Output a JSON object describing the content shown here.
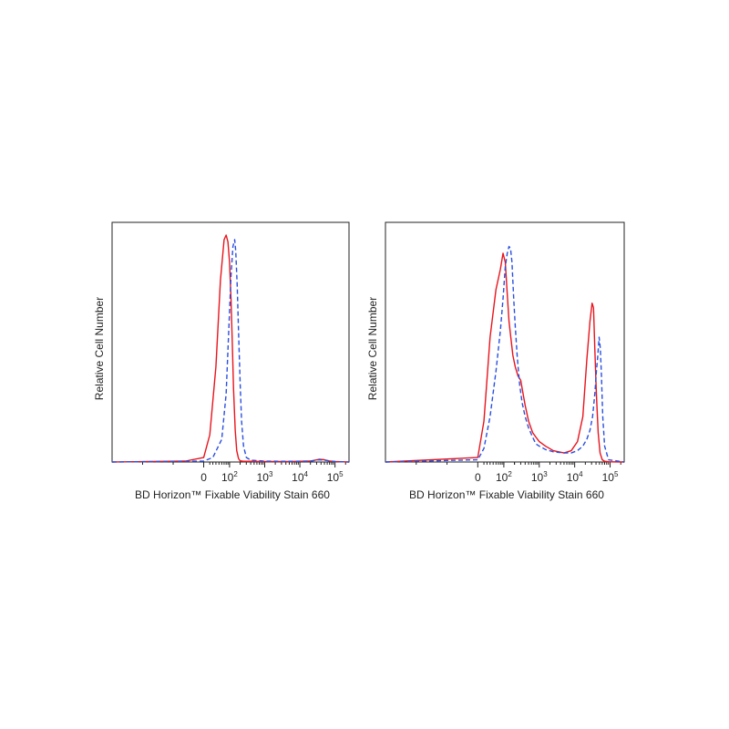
{
  "chart_data": [
    {
      "type": "line",
      "title": "",
      "xlabel": "BD Horizon™ Fixable Viability Stain 660",
      "ylabel": "Relative Cell Number",
      "x_scale": "biexponential",
      "xlim": [
        -300,
        250000
      ],
      "ylim": [
        0,
        1.0
      ],
      "ticks": [
        {
          "value": 0,
          "base": "0",
          "exp": ""
        },
        {
          "value": 100,
          "base": "10",
          "exp": "2"
        },
        {
          "value": 1000,
          "base": "10",
          "exp": "3"
        },
        {
          "value": 10000,
          "base": "10",
          "exp": "4"
        },
        {
          "value": 100000,
          "base": "10",
          "exp": "5"
        }
      ],
      "series": [
        {
          "name": "solid",
          "color": "#e8141c",
          "dash": "solid",
          "x": [
            -300,
            -60,
            0,
            20,
            40,
            55,
            70,
            80,
            90,
            100,
            110,
            120,
            130,
            145,
            160,
            180,
            200,
            250,
            400,
            1000,
            5000,
            20000,
            35000,
            50000,
            70000,
            100000,
            250000
          ],
          "y": [
            0,
            0.004,
            0.02,
            0.12,
            0.42,
            0.8,
            0.98,
            1.0,
            0.97,
            0.88,
            0.72,
            0.52,
            0.32,
            0.14,
            0.05,
            0.015,
            0.005,
            0.003,
            0.003,
            0.002,
            0.002,
            0.004,
            0.012,
            0.01,
            0.004,
            0.002,
            0
          ]
        },
        {
          "name": "dashed",
          "color": "#2a4fe0",
          "dash": "dashed",
          "x": [
            -300,
            0,
            30,
            60,
            80,
            95,
            110,
            125,
            140,
            150,
            165,
            180,
            200,
            220,
            250,
            300,
            400,
            1000,
            5000,
            20000,
            35000,
            50000,
            100000,
            250000
          ],
          "y": [
            0,
            0.004,
            0.02,
            0.1,
            0.3,
            0.58,
            0.82,
            0.95,
            0.98,
            0.93,
            0.78,
            0.58,
            0.35,
            0.18,
            0.07,
            0.02,
            0.008,
            0.004,
            0.003,
            0.004,
            0.01,
            0.008,
            0.002,
            0
          ]
        }
      ]
    },
    {
      "type": "line",
      "title": "",
      "xlabel": "BD Horizon™ Fixable Viability Stain 660",
      "ylabel": "Relative Cell Number",
      "x_scale": "biexponential",
      "xlim": [
        -300,
        250000
      ],
      "ylim": [
        0,
        1.0
      ],
      "ticks": [
        {
          "value": 0,
          "base": "0",
          "exp": ""
        },
        {
          "value": 100,
          "base": "10",
          "exp": "2"
        },
        {
          "value": 1000,
          "base": "10",
          "exp": "3"
        },
        {
          "value": 10000,
          "base": "10",
          "exp": "4"
        },
        {
          "value": 100000,
          "base": "10",
          "exp": "5"
        }
      ],
      "series": [
        {
          "name": "solid",
          "color": "#e8141c",
          "dash": "solid",
          "x": [
            -300,
            0,
            20,
            40,
            60,
            80,
            95,
            110,
            125,
            140,
            160,
            180,
            210,
            250,
            300,
            350,
            400,
            500,
            650,
            800,
            1000,
            1500,
            2500,
            5000,
            8000,
            12000,
            17000,
            22000,
            27000,
            31000,
            34000,
            37000,
            41000,
            46000,
            52000,
            60000,
            70000,
            90000,
            250000
          ],
          "y": [
            0,
            0.02,
            0.18,
            0.55,
            0.76,
            0.85,
            0.92,
            0.88,
            0.74,
            0.62,
            0.54,
            0.47,
            0.42,
            0.38,
            0.36,
            0.3,
            0.25,
            0.18,
            0.13,
            0.11,
            0.09,
            0.07,
            0.05,
            0.04,
            0.05,
            0.09,
            0.2,
            0.45,
            0.62,
            0.7,
            0.68,
            0.5,
            0.3,
            0.13,
            0.04,
            0.01,
            0.003,
            0.001,
            0
          ]
        },
        {
          "name": "dashed",
          "color": "#2a4fe0",
          "dash": "dashed",
          "x": [
            -300,
            0,
            20,
            40,
            60,
            80,
            95,
            110,
            125,
            140,
            155,
            170,
            190,
            210,
            240,
            280,
            330,
            400,
            500,
            650,
            800,
            1000,
            1500,
            2500,
            5000,
            8000,
            12000,
            17000,
            22000,
            27000,
            32000,
            37000,
            41000,
            45000,
            49000,
            53000,
            57000,
            62000,
            70000,
            90000,
            250000
          ],
          "y": [
            0,
            0.01,
            0.06,
            0.2,
            0.4,
            0.58,
            0.72,
            0.86,
            0.92,
            0.95,
            0.94,
            0.88,
            0.72,
            0.6,
            0.46,
            0.34,
            0.26,
            0.2,
            0.15,
            0.11,
            0.08,
            0.07,
            0.055,
            0.045,
            0.04,
            0.04,
            0.05,
            0.07,
            0.1,
            0.14,
            0.2,
            0.3,
            0.4,
            0.47,
            0.55,
            0.5,
            0.38,
            0.2,
            0.07,
            0.01,
            0
          ]
        }
      ]
    }
  ]
}
